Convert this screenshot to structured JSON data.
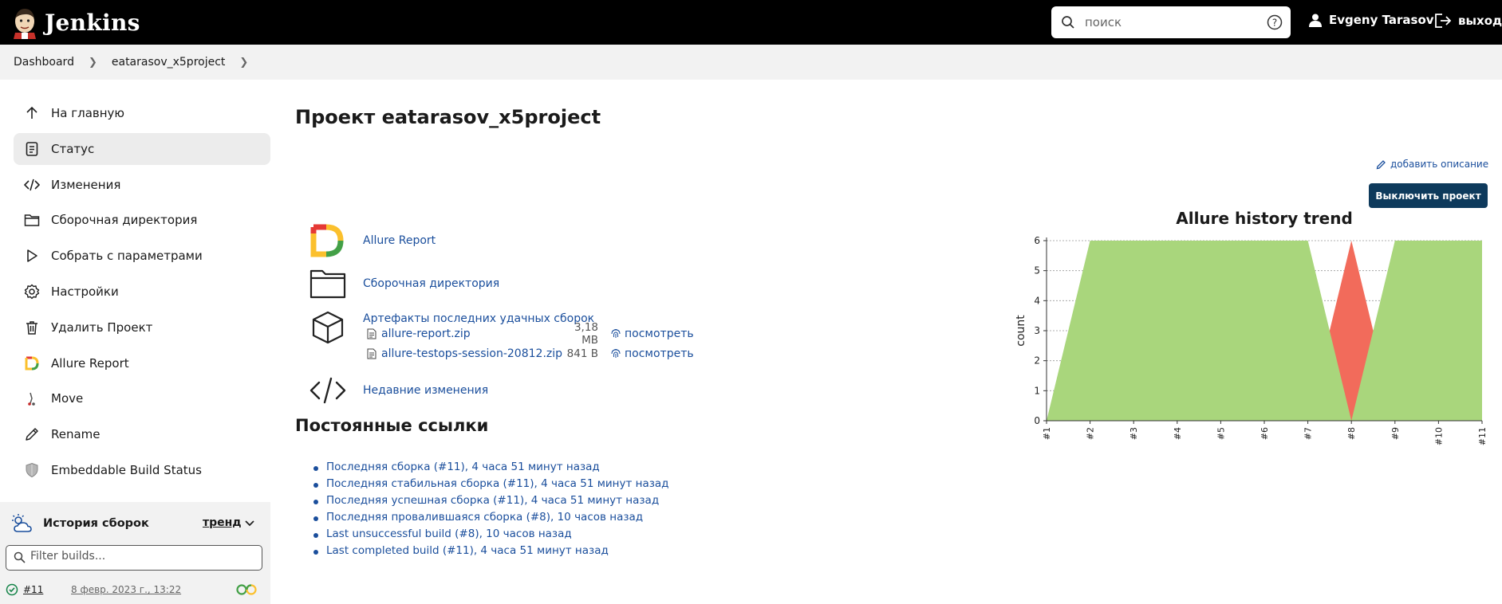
{
  "header": {
    "app_name": "Jenkins",
    "search_placeholder": "поиск",
    "user_name": "Evgeny Tarasov",
    "logout_label": "выход"
  },
  "breadcrumb": [
    "Dashboard",
    "eatarasov_x5project"
  ],
  "sidebar": {
    "items": [
      {
        "label": "На главную",
        "icon": "arrow-up-icon"
      },
      {
        "label": "Статус",
        "icon": "clipboard-icon",
        "active": true
      },
      {
        "label": "Изменения",
        "icon": "code-icon"
      },
      {
        "label": "Сборочная директория",
        "icon": "folder-icon"
      },
      {
        "label": "Собрать с параметрами",
        "icon": "play-icon"
      },
      {
        "label": "Настройки",
        "icon": "gear-icon"
      },
      {
        "label": "Удалить Проект",
        "icon": "trash-icon"
      },
      {
        "label": "Allure Report",
        "icon": "allure-icon"
      },
      {
        "label": "Move",
        "icon": "move-icon"
      },
      {
        "label": "Rename",
        "icon": "pencil-icon"
      },
      {
        "label": "Embeddable Build Status",
        "icon": "shield-icon"
      }
    ]
  },
  "build_history": {
    "title": "История сборок",
    "trend_label": "тренд",
    "filter_placeholder": "Filter builds...",
    "builds": [
      {
        "number": "#11",
        "date": "8 февр. 2023 г., 13:22",
        "status": "success"
      }
    ]
  },
  "main": {
    "title": "Проект eatarasov_x5project",
    "add_description": "добавить описание",
    "disable_button": "Выключить проект",
    "links": {
      "allure": "Allure Report",
      "workspace": "Сборочная директория",
      "changes": "Недавние изменения"
    },
    "artifacts": {
      "title": "Артефакты последних удачных сборок",
      "files": [
        {
          "name": "allure-report.zip",
          "size": "3,18 MB",
          "view": "посмотреть"
        },
        {
          "name": "allure-testops-session-20812.zip",
          "size": "841 B",
          "view": "посмотреть"
        }
      ]
    },
    "permalinks_title": "Постоянные ссылки",
    "permalinks": [
      "Последняя сборка (#11), 4 часа 51 минут назад",
      "Последняя стабильная сборка (#11), 4 часа 51 минут назад",
      "Последняя успешная сборка (#11), 4 часа 51 минут назад",
      "Последняя провалившаяся сборка (#8), 10 часов назад",
      "Last unsuccessful build (#8), 10 часов назад",
      "Last completed build (#11), 4 часа 51 минут назад"
    ]
  },
  "chart_data": {
    "type": "area",
    "title": "Allure history trend",
    "ylabel": "count",
    "xlabel": "",
    "ylim": [
      0,
      6
    ],
    "yticks": [
      0,
      1,
      2,
      3,
      4,
      5,
      6
    ],
    "categories": [
      "#1",
      "#2",
      "#3",
      "#4",
      "#5",
      "#6",
      "#7",
      "#8",
      "#9",
      "#10",
      "#11"
    ],
    "series": [
      {
        "color": "#f26b5b",
        "values": [
          0,
          0,
          0,
          0,
          0,
          0,
          0,
          6,
          0,
          0,
          0
        ]
      },
      {
        "color": "#a9d67c",
        "values": [
          0,
          6,
          6,
          6,
          6,
          6,
          6,
          0,
          6,
          6,
          6
        ]
      }
    ]
  },
  "colors": {
    "header_bg": "#000000",
    "link": "#1a4e9c",
    "button_bg": "#0e3a5c",
    "passed": "#a9d67c",
    "failed": "#f26b5b"
  }
}
